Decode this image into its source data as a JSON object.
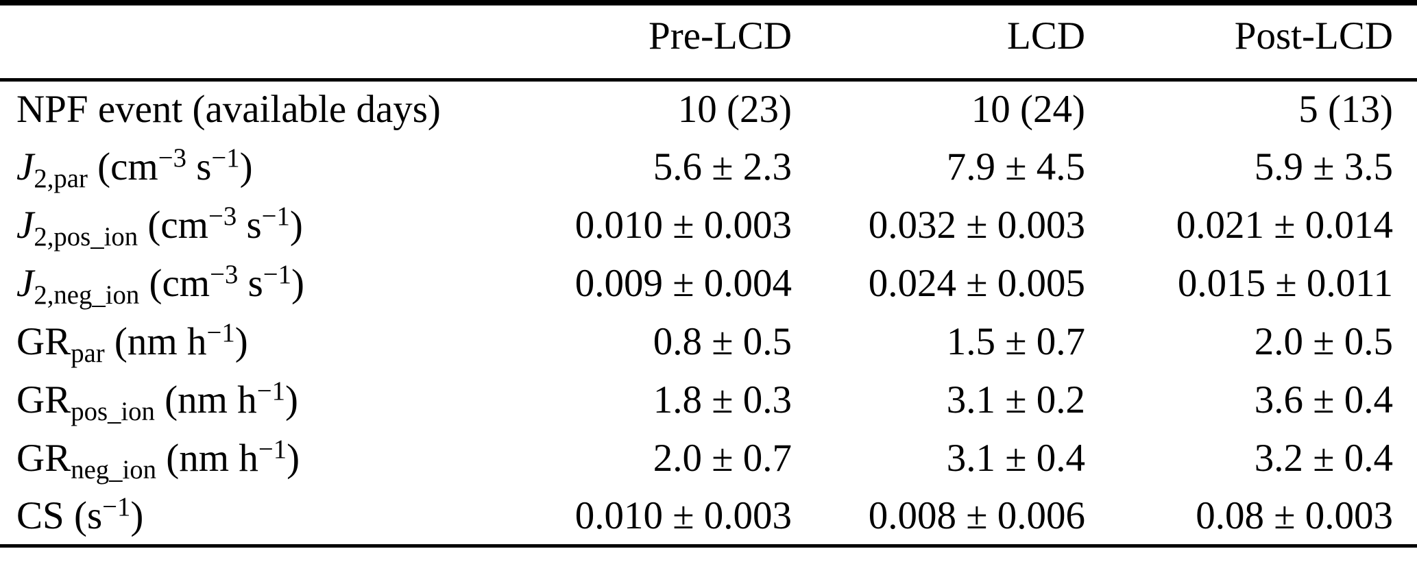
{
  "table": {
    "column_headers": [
      "Pre-LCD",
      "LCD",
      "Post-LCD"
    ],
    "rows": [
      {
        "label": {
          "base": "NPF event",
          "italic": false,
          "sub": "",
          "unit": [
            {
              "t": "(available days)"
            }
          ]
        },
        "values": [
          "10 (23)",
          "10 (24)",
          "5 (13)"
        ]
      },
      {
        "label": {
          "base": "J",
          "italic": true,
          "sub": "2,par",
          "unit": [
            {
              "t": "(cm"
            },
            {
              "sup": "−3"
            },
            {
              "t": " s"
            },
            {
              "sup": "−1"
            },
            {
              "t": ")"
            }
          ]
        },
        "values": [
          "5.6 ± 2.3",
          "7.9 ± 4.5",
          "5.9 ± 3.5"
        ]
      },
      {
        "label": {
          "base": "J",
          "italic": true,
          "sub": "2,pos_ion",
          "unit": [
            {
              "t": "(cm"
            },
            {
              "sup": "−3"
            },
            {
              "t": " s"
            },
            {
              "sup": "−1"
            },
            {
              "t": ")"
            }
          ]
        },
        "values": [
          "0.010 ± 0.003",
          "0.032 ± 0.003",
          "0.021 ± 0.014"
        ]
      },
      {
        "label": {
          "base": "J",
          "italic": true,
          "sub": "2,neg_ion",
          "unit": [
            {
              "t": "(cm"
            },
            {
              "sup": "−3"
            },
            {
              "t": " s"
            },
            {
              "sup": "−1"
            },
            {
              "t": ")"
            }
          ]
        },
        "values": [
          "0.009 ± 0.004",
          "0.024 ± 0.005",
          "0.015 ± 0.011"
        ]
      },
      {
        "label": {
          "base": "GR",
          "italic": false,
          "sub": "par",
          "unit": [
            {
              "t": "(nm h"
            },
            {
              "sup": "−1"
            },
            {
              "t": ")"
            }
          ]
        },
        "values": [
          "0.8 ± 0.5",
          "1.5 ± 0.7",
          "2.0 ± 0.5"
        ]
      },
      {
        "label": {
          "base": "GR",
          "italic": false,
          "sub": "pos_ion",
          "unit": [
            {
              "t": "(nm h"
            },
            {
              "sup": "−1"
            },
            {
              "t": ")"
            }
          ]
        },
        "values": [
          "1.8 ± 0.3",
          "3.1 ± 0.2",
          "3.6 ± 0.4"
        ]
      },
      {
        "label": {
          "base": "GR",
          "italic": false,
          "sub": "neg_ion",
          "unit": [
            {
              "t": "(nm h"
            },
            {
              "sup": "−1"
            },
            {
              "t": ")"
            }
          ]
        },
        "values": [
          "2.0 ± 0.7",
          "3.1 ± 0.4",
          "3.2 ± 0.4"
        ]
      },
      {
        "label": {
          "base": "CS",
          "italic": false,
          "sub": "",
          "unit": [
            {
              "t": "(s"
            },
            {
              "sup": "−1"
            },
            {
              "t": ")"
            }
          ]
        },
        "values": [
          "0.010 ± 0.003",
          "0.008 ± 0.006",
          "0.08 ± 0.003"
        ]
      }
    ]
  }
}
